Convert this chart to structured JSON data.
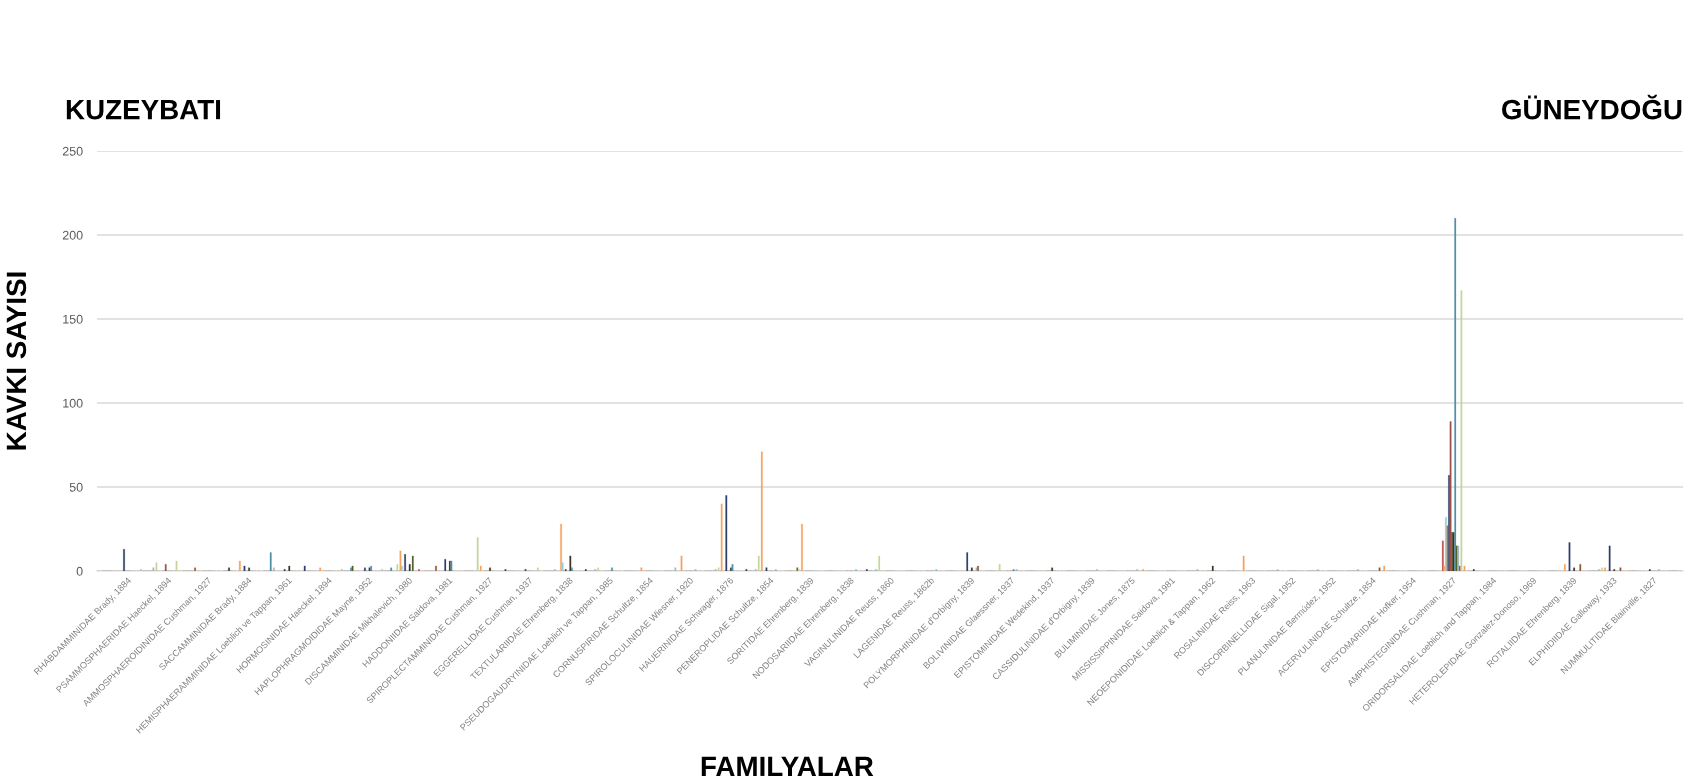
{
  "chart_data": {
    "type": "bar",
    "xlabel": "FAMILYALAR",
    "ylabel": "KAVKI SAYISI",
    "annotations": [
      "KUZEYBATI",
      "GÜNEYDOĞU"
    ],
    "categories": [
      null,
      "RHABDAMMINIDAE Brady, 1884",
      null,
      "PSAMMOSPHAERIDAE Haeckel, 1894",
      null,
      "AMMOSPHAEROIDINIDAE Cushman, 1927",
      null,
      "SACCAMMINIDAE Brady, 1884",
      null,
      "HEMISPHAERAMMINIDAE Loeblich ve Tappan, 1961",
      null,
      "HORMOSINIDAE Haeckel, 1894",
      null,
      "HAPLOPHRAGMOIDIDAE Mayne, 1952",
      null,
      "DISCAMMINIDAE Mikhalevich, 1980",
      null,
      "HADDONIIDAE Saidova, 1981",
      null,
      "SPIROPLECTAMMINIDAE Cushman, 1927",
      null,
      "EGGERELLIDAE Cushman, 1937",
      null,
      "TEXTULARIIDAE Ehrenberg, 1838",
      null,
      "PSEUDOGAUDRYINIDAE Loeblich ve Tappan, 1985",
      null,
      "CORNUSPIRIDAE Schultze, 1854",
      null,
      "SPIROLOCULINIDAE Wiesner, 1920",
      null,
      "HAUERINIDAE Schwager, 1876",
      null,
      "PENEROPLIDAE Schultze, 1854",
      null,
      "SORITIDAE Ehrenberg, 1839",
      null,
      "NODOSARIIDAE Ehrenberg, 1838",
      null,
      "VAGINULINIDAE Reuss, 1860",
      null,
      "LAGENIDAE Reuss, 1862b",
      null,
      "POLYMORPHINIDAE d'Orbigny, 1839",
      null,
      "BOLIVINIDAE Glaessner, 1937",
      null,
      "EPISTOMINIDAE Wedekind, 1937",
      null,
      "CASSIDULINIDAE d'Orbigny, 1839",
      null,
      "BULIMINIDAE Jones, 1875",
      null,
      "MISSISSIPPINIDAE Saidova, 1981",
      null,
      "NEOEPONIDIDAE Loeblich & Tappan, 1962",
      null,
      "ROSALINIDAE Reiss, 1963",
      null,
      "DISCORBINELLIDAE Sigal, 1952",
      null,
      "PLANULINIDAE Bermúdez, 1952",
      null,
      "ACERVULINIDAE Schultze, 1854",
      null,
      "EPISTOMARIIDAE Hofker, 1954",
      null,
      "AMPHISTEGINIDAE Cushman, 1927",
      null,
      "ORIDORSALIDAE Loeblich and Tappan, 1984",
      null,
      "HETEROLEPIDAE Gonzalez-Donoso, 1969",
      null,
      "ROTALIIDAE Ehrenberg, 1839",
      null,
      "ELPHIDIIDAE Galloway, 1933",
      null,
      "NUMMULITIDAE Blainville, 1827",
      null
    ],
    "series": [
      {
        "color": "#c0504d",
        "values": [
          0,
          0,
          0,
          0,
          0,
          0,
          0,
          0,
          0,
          0,
          0,
          0,
          0,
          0,
          0,
          0,
          1,
          0,
          0,
          0,
          0,
          0,
          0,
          0,
          0,
          0,
          0,
          0,
          0,
          0,
          0,
          0,
          0,
          0,
          0,
          0,
          0,
          0,
          0,
          0,
          0,
          0,
          0,
          0,
          0,
          0,
          0,
          0,
          0,
          0,
          0,
          0,
          0,
          0,
          0,
          0,
          0,
          0,
          0,
          0,
          0,
          0,
          0,
          0,
          0,
          0,
          0,
          18,
          0,
          0,
          0,
          0,
          0,
          0,
          0,
          0,
          0,
          0,
          0
        ]
      },
      {
        "color": "#f4a460",
        "values": [
          0,
          0,
          0,
          0,
          0,
          0,
          0,
          6,
          0,
          0,
          0,
          2,
          0,
          0,
          0,
          12,
          0,
          0,
          0,
          3,
          0,
          0,
          0,
          28,
          0,
          0,
          0,
          2,
          0,
          9,
          0,
          40,
          0,
          71,
          0,
          28,
          0,
          0,
          0,
          0,
          0,
          0,
          0,
          0,
          0,
          0,
          0,
          0,
          0,
          0,
          0,
          0,
          1,
          0,
          0,
          0,
          0,
          9,
          0,
          0,
          0,
          0,
          0,
          0,
          3,
          0,
          0,
          3,
          3,
          0,
          0,
          0,
          0,
          4,
          0,
          2,
          0,
          0,
          0
        ]
      },
      {
        "color": "#92cddc",
        "values": [
          0,
          0,
          1,
          0,
          0,
          0,
          0,
          0,
          0,
          0,
          0,
          0,
          1,
          0,
          1,
          3,
          0,
          0,
          0,
          0,
          0,
          0,
          0,
          5,
          0,
          0,
          0,
          0,
          0,
          0,
          0,
          0,
          0,
          0,
          0,
          0,
          0,
          0,
          0,
          0,
          0,
          0,
          0,
          0,
          0,
          0,
          0,
          0,
          0,
          0,
          0,
          0,
          0,
          0,
          0,
          0,
          0,
          0,
          0,
          0,
          0,
          0,
          0,
          0,
          0,
          0,
          0,
          32,
          0,
          0,
          0,
          0,
          0,
          0,
          0,
          0,
          0,
          0,
          0
        ]
      },
      {
        "color": "#c0783c",
        "values": [
          0,
          0,
          0,
          0,
          0,
          0,
          0,
          0,
          0,
          0,
          0,
          0,
          0,
          0,
          0,
          0,
          0,
          0,
          0,
          0,
          0,
          0,
          0,
          0,
          0,
          0,
          0,
          0,
          0,
          0,
          0,
          0,
          0,
          0,
          0,
          0,
          0,
          0,
          0,
          0,
          0,
          0,
          0,
          0,
          0,
          0,
          0,
          0,
          0,
          0,
          0,
          0,
          0,
          0,
          0,
          0,
          0,
          0,
          0,
          0,
          0,
          0,
          0,
          0,
          0,
          0,
          0,
          27,
          0,
          0,
          0,
          0,
          0,
          0,
          0,
          0,
          0,
          0,
          0
        ]
      },
      {
        "color": "#2f3f6b",
        "values": [
          0,
          13,
          0,
          0,
          0,
          0,
          0,
          3,
          0,
          1,
          3,
          0,
          0,
          2,
          0,
          10,
          0,
          7,
          0,
          0,
          1,
          1,
          0,
          1,
          1,
          0,
          0,
          0,
          0,
          0,
          0,
          45,
          1,
          2,
          0,
          0,
          0,
          0,
          1,
          0,
          0,
          0,
          0,
          11,
          0,
          0,
          0,
          0,
          0,
          0,
          0,
          0,
          0,
          0,
          0,
          0,
          0,
          0,
          0,
          0,
          0,
          0,
          0,
          0,
          0,
          0,
          0,
          57,
          0,
          0,
          0,
          0,
          0,
          17,
          0,
          15,
          0,
          1,
          0
        ]
      },
      {
        "color": "#a0524a",
        "values": [
          0,
          0,
          0,
          4,
          0,
          0,
          0,
          0,
          0,
          0,
          0,
          0,
          0,
          0,
          0,
          0,
          0,
          0,
          0,
          0,
          0,
          0,
          0,
          0,
          0,
          0,
          0,
          0,
          0,
          0,
          0,
          0,
          0,
          0,
          0,
          0,
          0,
          0,
          0,
          0,
          0,
          0,
          0,
          0,
          0,
          0,
          0,
          0,
          0,
          0,
          0,
          0,
          0,
          0,
          0,
          0,
          0,
          0,
          0,
          0,
          0,
          0,
          0,
          0,
          0,
          0,
          0,
          89,
          0,
          0,
          0,
          0,
          0,
          0,
          0,
          0,
          0,
          0,
          0
        ]
      },
      {
        "color": "#5a5230",
        "values": [
          0,
          0,
          0,
          0,
          0,
          0,
          0,
          0,
          0,
          0,
          0,
          0,
          0,
          0,
          0,
          0,
          0,
          0,
          0,
          0,
          0,
          0,
          0,
          0,
          0,
          0,
          0,
          0,
          0,
          0,
          0,
          0,
          0,
          0,
          0,
          0,
          0,
          0,
          0,
          0,
          0,
          0,
          0,
          0,
          0,
          0,
          0,
          0,
          0,
          0,
          0,
          0,
          0,
          0,
          0,
          0,
          0,
          0,
          0,
          0,
          0,
          0,
          0,
          0,
          0,
          0,
          0,
          23,
          0,
          0,
          0,
          0,
          0,
          0,
          0,
          0,
          0,
          0,
          0
        ]
      },
      {
        "color": "#3a3528",
        "values": [
          0,
          0,
          0,
          0,
          0,
          0,
          2,
          2,
          0,
          3,
          0,
          0,
          0,
          2,
          0,
          4,
          0,
          6,
          0,
          2,
          0,
          0,
          0,
          9,
          0,
          0,
          0,
          0,
          0,
          0,
          0,
          2,
          0,
          0,
          0,
          0,
          0,
          0,
          0,
          0,
          0,
          0,
          0,
          2,
          0,
          0,
          0,
          2,
          0,
          0,
          0,
          0,
          0,
          0,
          0,
          3,
          0,
          0,
          0,
          0,
          0,
          0,
          0,
          0,
          0,
          0,
          0,
          23,
          1,
          0,
          0,
          0,
          0,
          2,
          0,
          1,
          0,
          0,
          0
        ]
      },
      {
        "color": "#4e8fa8",
        "values": [
          0,
          0,
          0,
          0,
          0,
          0,
          0,
          0,
          11,
          0,
          0,
          0,
          2,
          3,
          2,
          0,
          0,
          6,
          0,
          0,
          0,
          0,
          0,
          2,
          0,
          2,
          0,
          0,
          0,
          0,
          0,
          4,
          0,
          0,
          0,
          0,
          0,
          0,
          0,
          0,
          0,
          0,
          0,
          0,
          0,
          1,
          0,
          0,
          0,
          0,
          0,
          0,
          0,
          0,
          0,
          0,
          0,
          0,
          0,
          0,
          0,
          0,
          0,
          0,
          0,
          0,
          0,
          210,
          0,
          0,
          0,
          0,
          0,
          0,
          0,
          0,
          0,
          0,
          0
        ]
      },
      {
        "color": "#4f6228",
        "values": [
          0,
          0,
          0,
          0,
          0,
          0,
          0,
          0,
          0,
          0,
          0,
          0,
          3,
          0,
          0,
          9,
          0,
          0,
          0,
          0,
          0,
          0,
          0,
          0,
          0,
          0,
          0,
          0,
          0,
          0,
          0,
          0,
          0,
          0,
          0,
          0,
          0,
          0,
          0,
          0,
          0,
          0,
          0,
          0,
          0,
          0,
          0,
          0,
          0,
          0,
          0,
          0,
          0,
          0,
          0,
          0,
          0,
          0,
          0,
          0,
          0,
          0,
          0,
          0,
          0,
          0,
          0,
          15,
          0,
          0,
          0,
          0,
          0,
          0,
          0,
          0,
          0,
          0,
          0
        ]
      },
      {
        "color": "#a8b8c8",
        "values": [
          0,
          0,
          2,
          0,
          0,
          0,
          0,
          0,
          2,
          0,
          0,
          0,
          0,
          0,
          0,
          0,
          0,
          0,
          0,
          0,
          0,
          0,
          1,
          0,
          1,
          0,
          0,
          0,
          2,
          1,
          1,
          0,
          1,
          1,
          0,
          0,
          0,
          1,
          1,
          0,
          0,
          1,
          0,
          2,
          0,
          1,
          0,
          0,
          0,
          1,
          0,
          1,
          0,
          0,
          1,
          0,
          0,
          0,
          1,
          0,
          1,
          0,
          1,
          0,
          0,
          0,
          0,
          15,
          0,
          0,
          0,
          0,
          0,
          0,
          1,
          0,
          0,
          1,
          0
        ]
      },
      {
        "color": "#8c5a3c",
        "values": [
          0,
          0,
          0,
          0,
          2,
          0,
          0,
          0,
          0,
          0,
          0,
          0,
          0,
          0,
          0,
          0,
          3,
          0,
          0,
          0,
          0,
          0,
          0,
          0,
          0,
          0,
          0,
          0,
          0,
          0,
          0,
          0,
          0,
          0,
          2,
          0,
          0,
          0,
          0,
          0,
          0,
          0,
          0,
          3,
          0,
          0,
          0,
          0,
          0,
          0,
          0,
          0,
          0,
          0,
          0,
          0,
          0,
          0,
          0,
          0,
          0,
          0,
          0,
          2,
          0,
          0,
          0,
          3,
          0,
          0,
          0,
          0,
          0,
          4,
          0,
          2,
          0,
          0,
          0
        ]
      },
      {
        "color": "#c3d69b",
        "values": [
          0,
          0,
          5,
          6,
          0,
          0,
          0,
          0,
          0,
          0,
          0,
          0,
          0,
          0,
          4,
          0,
          0,
          0,
          20,
          0,
          0,
          2,
          0,
          0,
          2,
          0,
          0,
          0,
          0,
          0,
          2,
          0,
          9,
          0,
          1,
          0,
          0,
          0,
          9,
          0,
          0,
          0,
          0,
          0,
          4,
          0,
          0,
          0,
          0,
          0,
          0,
          0,
          0,
          0,
          0,
          0,
          0,
          0,
          0,
          0,
          0,
          0,
          0,
          0,
          0,
          0,
          0,
          167,
          0,
          0,
          0,
          0,
          0,
          0,
          2,
          0,
          0,
          0,
          0
        ]
      }
    ],
    "ylim": [
      0,
      250
    ],
    "yticks": [
      0,
      50,
      100,
      150,
      200,
      250
    ],
    "grid": "y",
    "legend": false
  }
}
